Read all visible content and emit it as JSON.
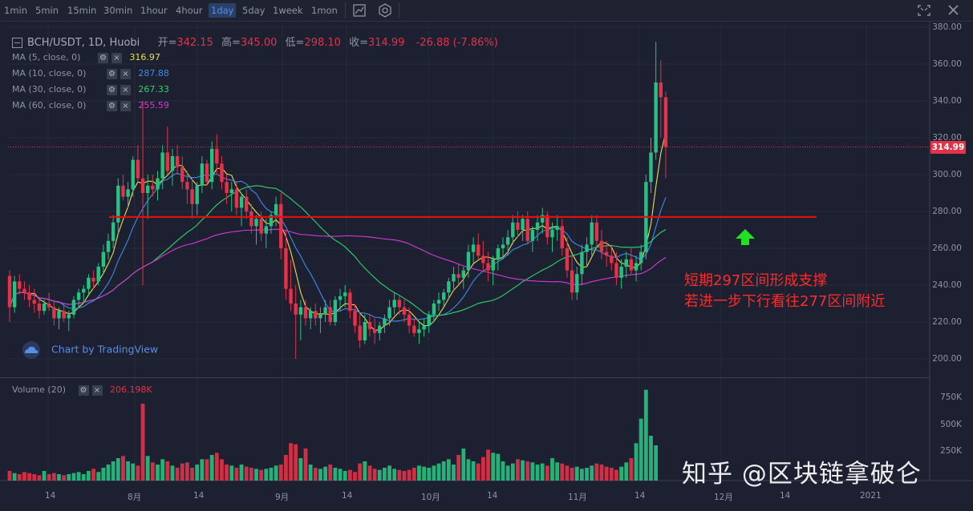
{
  "toolbar": {
    "timeframes": [
      "1min",
      "5min",
      "15min",
      "30min",
      "1hour",
      "4hour",
      "1day",
      "5day",
      "1week",
      "1mon"
    ],
    "active_timeframe": "1day",
    "icons": [
      "chart-type-icon",
      "indicators-icon",
      "fullscreen-icon",
      "close-icon"
    ]
  },
  "header": {
    "symbol": "BCH/USDT, 1D, Huobi",
    "open_label": "开=",
    "open": "342.15",
    "high_label": "高=",
    "high": "345.00",
    "low_label": "低=",
    "low": "298.10",
    "close_label": "收=",
    "close": "314.99",
    "change": "-26.88 (-7.86%)"
  },
  "indicators": [
    {
      "label": "MA (5, close, 0)",
      "value": "316.97",
      "color": "#e8e04a"
    },
    {
      "label": "MA (10, close, 0)",
      "value": "287.88",
      "color": "#3f8be8"
    },
    {
      "label": "MA (30, close, 0)",
      "value": "267.33",
      "color": "#2fd36a"
    },
    {
      "label": "MA (60, close, 0)",
      "value": "255.59",
      "color": "#d43bd4"
    }
  ],
  "volume_indicator": {
    "label": "Volume (20)",
    "value": "206.198K"
  },
  "price_axis": [
    "380.00",
    "360.00",
    "340.00",
    "320.00",
    "300.00",
    "280.00",
    "260.00",
    "240.00",
    "220.00",
    "200.00"
  ],
  "volume_axis": [
    "750K",
    "500K",
    "250K"
  ],
  "last_price": "314.99",
  "date_axis": [
    "14",
    "8月",
    "14",
    "9月",
    "14",
    "10月",
    "14",
    "11月",
    "14",
    "12月",
    "14",
    "2021"
  ],
  "annotation": {
    "line1": "短期297区间形成支撑",
    "line2": "若进一步下行看往277区间附近"
  },
  "brand": "Chart by TradingView",
  "watermark": "知乎 @区块链拿破仑",
  "colors": {
    "up": "#26c281",
    "down": "#e2334a",
    "support_line": "#e01010",
    "arrow": "#22e022"
  },
  "chart_data": {
    "type": "candlestick",
    "symbol": "BCH/USDT",
    "timeframe": "1D",
    "ylim": [
      195,
      382
    ],
    "support_level": 277,
    "ohlc": [
      [
        245,
        248,
        220,
        228
      ],
      [
        228,
        245,
        225,
        242
      ],
      [
        242,
        246,
        235,
        238
      ],
      [
        238,
        242,
        232,
        236
      ],
      [
        236,
        240,
        228,
        232
      ],
      [
        232,
        238,
        225,
        230
      ],
      [
        230,
        233,
        222,
        226
      ],
      [
        226,
        232,
        224,
        230
      ],
      [
        230,
        236,
        226,
        228
      ],
      [
        228,
        232,
        218,
        222
      ],
      [
        222,
        228,
        216,
        226
      ],
      [
        226,
        230,
        220,
        222
      ],
      [
        222,
        226,
        215,
        224
      ],
      [
        224,
        234,
        222,
        232
      ],
      [
        232,
        238,
        228,
        236
      ],
      [
        236,
        240,
        230,
        238
      ],
      [
        238,
        246,
        234,
        244
      ],
      [
        244,
        248,
        238,
        242
      ],
      [
        242,
        252,
        240,
        250
      ],
      [
        250,
        262,
        246,
        258
      ],
      [
        258,
        268,
        254,
        264
      ],
      [
        264,
        278,
        260,
        274
      ],
      [
        274,
        298,
        268,
        294
      ],
      [
        294,
        300,
        286,
        288
      ],
      [
        288,
        296,
        282,
        292
      ],
      [
        292,
        310,
        288,
        308
      ],
      [
        308,
        316,
        296,
        298
      ],
      [
        298,
        340,
        240,
        290
      ],
      [
        290,
        300,
        276,
        294
      ],
      [
        294,
        300,
        288,
        292
      ],
      [
        292,
        302,
        286,
        298
      ],
      [
        298,
        316,
        292,
        312
      ],
      [
        312,
        326,
        300,
        302
      ],
      [
        302,
        314,
        294,
        310
      ],
      [
        310,
        316,
        300,
        304
      ],
      [
        304,
        310,
        292,
        296
      ],
      [
        296,
        302,
        284,
        292
      ],
      [
        292,
        298,
        276,
        284
      ],
      [
        284,
        296,
        278,
        294
      ],
      [
        294,
        310,
        290,
        306
      ],
      [
        306,
        308,
        294,
        296
      ],
      [
        296,
        318,
        292,
        314
      ],
      [
        314,
        322,
        300,
        306
      ],
      [
        306,
        310,
        292,
        296
      ],
      [
        296,
        300,
        284,
        290
      ],
      [
        290,
        296,
        280,
        292
      ],
      [
        292,
        296,
        278,
        282
      ],
      [
        282,
        290,
        272,
        288
      ],
      [
        288,
        292,
        276,
        280
      ],
      [
        280,
        284,
        268,
        272
      ],
      [
        272,
        278,
        262,
        276
      ],
      [
        276,
        280,
        264,
        268
      ],
      [
        268,
        276,
        260,
        272
      ],
      [
        272,
        280,
        268,
        278
      ],
      [
        278,
        288,
        272,
        284
      ],
      [
        284,
        290,
        254,
        260
      ],
      [
        260,
        270,
        232,
        238
      ],
      [
        238,
        254,
        226,
        230
      ],
      [
        230,
        240,
        200,
        224
      ],
      [
        224,
        232,
        210,
        228
      ],
      [
        228,
        232,
        218,
        222
      ],
      [
        222,
        228,
        216,
        226
      ],
      [
        226,
        230,
        218,
        222
      ],
      [
        222,
        228,
        214,
        224
      ],
      [
        224,
        232,
        220,
        228
      ],
      [
        228,
        232,
        218,
        220
      ],
      [
        220,
        234,
        218,
        232
      ],
      [
        232,
        238,
        226,
        234
      ],
      [
        234,
        240,
        228,
        236
      ],
      [
        236,
        238,
        222,
        226
      ],
      [
        226,
        230,
        214,
        218
      ],
      [
        218,
        224,
        206,
        210
      ],
      [
        210,
        224,
        208,
        220
      ],
      [
        220,
        224,
        212,
        216
      ],
      [
        216,
        222,
        208,
        214
      ],
      [
        214,
        220,
        210,
        218
      ],
      [
        218,
        224,
        214,
        222
      ],
      [
        222,
        232,
        218,
        228
      ],
      [
        228,
        236,
        224,
        232
      ],
      [
        232,
        234,
        224,
        228
      ],
      [
        228,
        232,
        220,
        224
      ],
      [
        224,
        228,
        214,
        218
      ],
      [
        218,
        222,
        212,
        214
      ],
      [
        214,
        220,
        208,
        216
      ],
      [
        216,
        222,
        212,
        218
      ],
      [
        218,
        226,
        214,
        224
      ],
      [
        224,
        232,
        220,
        230
      ],
      [
        230,
        236,
        226,
        232
      ],
      [
        232,
        238,
        228,
        236
      ],
      [
        236,
        244,
        232,
        242
      ],
      [
        242,
        250,
        238,
        246
      ],
      [
        246,
        252,
        240,
        244
      ],
      [
        244,
        250,
        238,
        248
      ],
      [
        248,
        262,
        244,
        258
      ],
      [
        258,
        266,
        252,
        262
      ],
      [
        262,
        268,
        254,
        256
      ],
      [
        256,
        264,
        248,
        252
      ],
      [
        252,
        258,
        242,
        248
      ],
      [
        248,
        256,
        240,
        254
      ],
      [
        254,
        262,
        248,
        260
      ],
      [
        260,
        266,
        254,
        262
      ],
      [
        262,
        270,
        256,
        266
      ],
      [
        266,
        278,
        262,
        274
      ],
      [
        274,
        280,
        266,
        270
      ],
      [
        270,
        278,
        264,
        276
      ],
      [
        276,
        280,
        262,
        264
      ],
      [
        264,
        272,
        258,
        270
      ],
      [
        270,
        278,
        264,
        274
      ],
      [
        274,
        282,
        268,
        278
      ],
      [
        278,
        280,
        262,
        266
      ],
      [
        266,
        274,
        258,
        270
      ],
      [
        270,
        278,
        264,
        272
      ],
      [
        272,
        276,
        256,
        260
      ],
      [
        260,
        266,
        244,
        248
      ],
      [
        248,
        256,
        232,
        236
      ],
      [
        236,
        250,
        232,
        246
      ],
      [
        246,
        262,
        240,
        258
      ],
      [
        258,
        266,
        250,
        262
      ],
      [
        262,
        278,
        256,
        274
      ],
      [
        274,
        278,
        260,
        264
      ],
      [
        264,
        270,
        254,
        258
      ],
      [
        258,
        264,
        250,
        256
      ],
      [
        256,
        262,
        248,
        252
      ],
      [
        252,
        258,
        240,
        244
      ],
      [
        244,
        254,
        238,
        250
      ],
      [
        250,
        258,
        244,
        254
      ],
      [
        254,
        260,
        246,
        248
      ],
      [
        248,
        256,
        242,
        252
      ],
      [
        252,
        262,
        248,
        258
      ],
      [
        258,
        300,
        254,
        296
      ],
      [
        296,
        320,
        290,
        312
      ],
      [
        312,
        372,
        308,
        350
      ],
      [
        350,
        362,
        320,
        342
      ],
      [
        342,
        345,
        298,
        315
      ]
    ],
    "ma": {
      "MA5": {
        "last": 316.97
      },
      "MA10": {
        "last": 287.88
      },
      "MA30": {
        "last": 267.33
      },
      "MA60": {
        "last": 255.59
      }
    },
    "volume": [
      90,
      70,
      60,
      80,
      70,
      60,
      50,
      90,
      60,
      70,
      60,
      50,
      60,
      70,
      80,
      60,
      90,
      110,
      80,
      120,
      150,
      180,
      210,
      230,
      180,
      160,
      140,
      720,
      230,
      170,
      150,
      200,
      180,
      140,
      120,
      160,
      170,
      120,
      150,
      200,
      200,
      240,
      260,
      200,
      150,
      140,
      120,
      150,
      130,
      120,
      110,
      100,
      110,
      120,
      140,
      150,
      240,
      350,
      340,
      210,
      300,
      150,
      120,
      110,
      130,
      150,
      120,
      110,
      90,
      100,
      80,
      160,
      180,
      140,
      110,
      100,
      120,
      140,
      110,
      100,
      90,
      100,
      120,
      140,
      130,
      120,
      140,
      160,
      180,
      200,
      150,
      240,
      300,
      200,
      180,
      160,
      220,
      290,
      260,
      250,
      180,
      140,
      160,
      200,
      190,
      180,
      170,
      150,
      160,
      140,
      210,
      170,
      160,
      140,
      120,
      130,
      110,
      120,
      140,
      160,
      150,
      130,
      120,
      100,
      130,
      170,
      210,
      350,
      580,
      850,
      420,
      330
    ],
    "volume_ylim": [
      0,
      900
    ]
  }
}
